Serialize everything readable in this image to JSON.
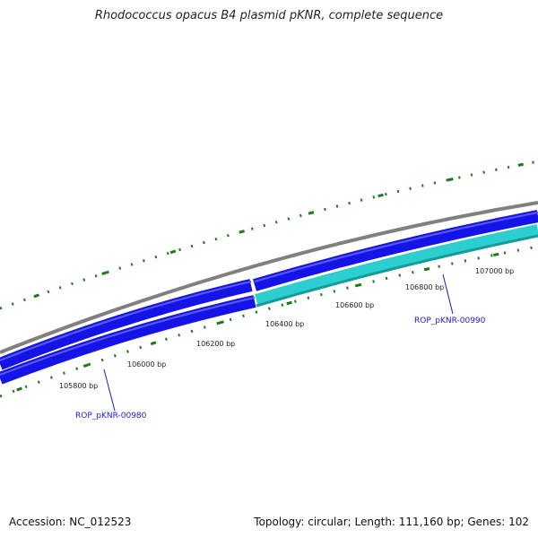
{
  "title": "Rhodococcus opacus B4 plasmid pKNR, complete sequence",
  "footer": {
    "accession": "Accession: NC_012523",
    "summary": "Topology: circular; Length: 111,160 bp; Genes: 102"
  },
  "tick_labels": [
    "105800 bp",
    "106000 bp",
    "106200 bp",
    "106400 bp",
    "106600 bp",
    "106800 bp",
    "107000 bp"
  ],
  "genes": [
    {
      "label": "ROP_pKNR-00980"
    },
    {
      "label": "ROP_pKNR-00990"
    }
  ],
  "colors": {
    "backbone": "#808080",
    "gene_blue": "#1414e6",
    "gene_cyan": "#2ccfcf",
    "gene_cyan_edge": "#169a9a",
    "tick_green": "#1a7a1a",
    "label_blue": "#1c1ccc"
  }
}
